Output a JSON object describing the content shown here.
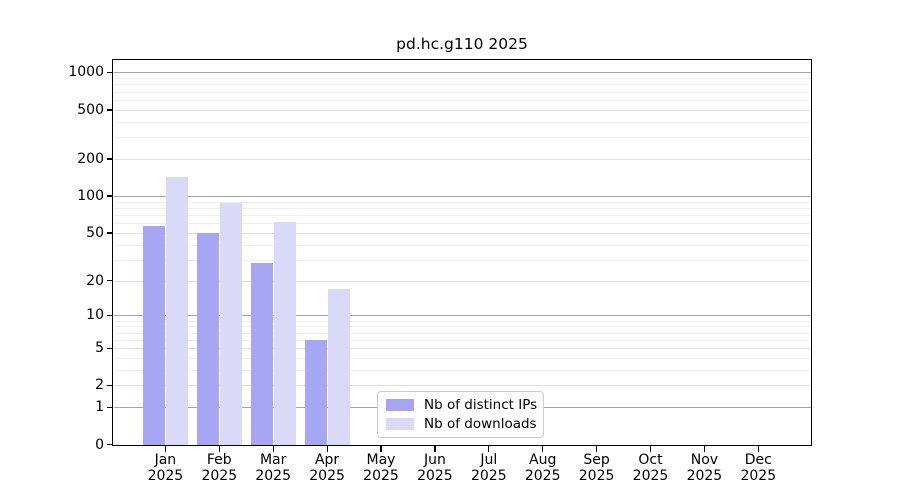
{
  "chart_data": {
    "type": "bar",
    "title": "pd.hc.g110 2025",
    "year": "2025",
    "categories": [
      "Jan",
      "Feb",
      "Mar",
      "Apr",
      "May",
      "Jun",
      "Jul",
      "Aug",
      "Sep",
      "Oct",
      "Nov",
      "Dec"
    ],
    "series": [
      {
        "name": "Nb of distinct IPs",
        "color": "#a6a6f5",
        "values": [
          57,
          50,
          28,
          6,
          0,
          0,
          0,
          0,
          0,
          0,
          0,
          0
        ]
      },
      {
        "name": "Nb of downloads",
        "color": "#dadaf8",
        "values": [
          142,
          88,
          61,
          17,
          0,
          0,
          0,
          0,
          0,
          0,
          0,
          0
        ]
      }
    ],
    "y_ticks": [
      0,
      1,
      2,
      5,
      10,
      20,
      50,
      100,
      200,
      500,
      1000
    ],
    "y_minor_ticks": [
      3,
      4,
      6,
      7,
      8,
      9,
      30,
      40,
      60,
      70,
      80,
      90,
      300,
      400,
      600,
      700,
      800,
      900
    ],
    "y_scale": "log10(1+v)",
    "ylim": [
      0,
      1290
    ],
    "xlabel": "",
    "ylabel": "",
    "grid": "horizontal major+minor",
    "legend_position": "inside lower-center",
    "colors": {
      "axis": "#000000",
      "decade_gridline": "#a6a6a6",
      "major_gridline": "#e0e0e0",
      "minor_gridline": "#efefef",
      "legend_border": "#cccccc"
    }
  }
}
